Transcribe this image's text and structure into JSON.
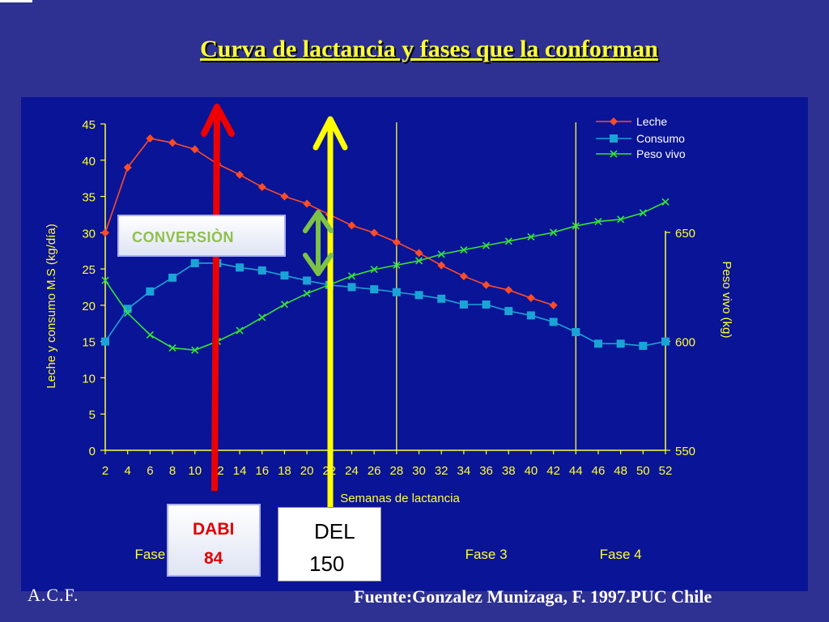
{
  "slide": {
    "title": "Curva de lactancia y fases que la conforman",
    "author": "A.C.F.",
    "source": "Fuente:Gonzalez Munizaga, F. 1997.PUC Chile"
  },
  "annotations": {
    "conversion": "CONVERSIÒN",
    "dabi_line1": "DABI",
    "dabi_line2": "84",
    "del_line1": "DEL",
    "del_line2": "150"
  },
  "colors": {
    "background": "#2e3192",
    "plot": "#0a1496",
    "axis": "#ffff33",
    "leche": "#ff4c26",
    "consumo": "#1aa3d6",
    "peso": "#33e633",
    "red_arrow": "#ee0000",
    "yellow_arrow": "#ffff00",
    "green_arrow": "#7cc246"
  },
  "chart_data": {
    "type": "line",
    "xlabel": "Semanas de lactancia",
    "ylabel": "Leche y consumo M.S (kg/día)",
    "y2label": "Peso vivo (kg)",
    "xlim": [
      2,
      52
    ],
    "ylim": [
      0,
      45
    ],
    "y2lim": [
      550,
      670
    ],
    "x_ticks": [
      2,
      4,
      6,
      8,
      10,
      12,
      14,
      16,
      18,
      20,
      22,
      24,
      26,
      28,
      30,
      32,
      34,
      36,
      38,
      40,
      42,
      44,
      46,
      48,
      50,
      52
    ],
    "y_ticks": [
      0,
      5,
      10,
      15,
      20,
      25,
      30,
      35,
      40,
      45
    ],
    "y2_ticks": [
      550,
      600,
      650
    ],
    "grid": false,
    "legend": "top-right",
    "phase_lines_x": [
      28,
      44
    ],
    "phases": [
      {
        "label": "Fase",
        "x": 6
      },
      {
        "label": "Fase 3",
        "x": 36
      },
      {
        "label": "Fase 4",
        "x": 48
      }
    ],
    "series": [
      {
        "name": "Leche",
        "axis": "left",
        "marker": "diamond",
        "x": [
          2,
          4,
          6,
          8,
          10,
          12,
          14,
          16,
          18,
          20,
          22,
          24,
          26,
          28,
          30,
          32,
          34,
          36,
          38,
          40,
          42
        ],
        "values": [
          30,
          39,
          43,
          42.4,
          41.5,
          39.5,
          38,
          36.3,
          35,
          34,
          32.5,
          31,
          30,
          28.7,
          27.2,
          25.5,
          24,
          22.8,
          22.1,
          21,
          20
        ]
      },
      {
        "name": "Consumo",
        "axis": "left",
        "marker": "square",
        "x": [
          2,
          4,
          6,
          8,
          10,
          12,
          14,
          16,
          18,
          20,
          22,
          24,
          26,
          28,
          30,
          32,
          34,
          36,
          38,
          40,
          42,
          44,
          46,
          48,
          50,
          52
        ],
        "values": [
          15,
          19.5,
          21.9,
          23.8,
          25.8,
          25.8,
          25.2,
          24.8,
          24.1,
          23.4,
          22.8,
          22.5,
          22.2,
          21.8,
          21.4,
          20.9,
          20.1,
          20.1,
          19.2,
          18.6,
          17.7,
          16.3,
          14.7,
          14.7,
          14.4,
          15
        ]
      },
      {
        "name": "Peso vivo",
        "axis": "right",
        "marker": "cross",
        "x": [
          2,
          4,
          6,
          8,
          10,
          12,
          14,
          16,
          18,
          20,
          22,
          24,
          26,
          28,
          30,
          32,
          34,
          36,
          38,
          40,
          42,
          44,
          46,
          48,
          50,
          52
        ],
        "values": [
          628,
          613,
          603,
          597,
          596,
          600,
          605,
          611,
          617,
          622,
          626,
          630,
          633,
          635,
          637,
          640,
          642,
          644,
          646,
          648,
          650,
          653,
          655,
          656,
          659,
          664
        ]
      }
    ]
  }
}
